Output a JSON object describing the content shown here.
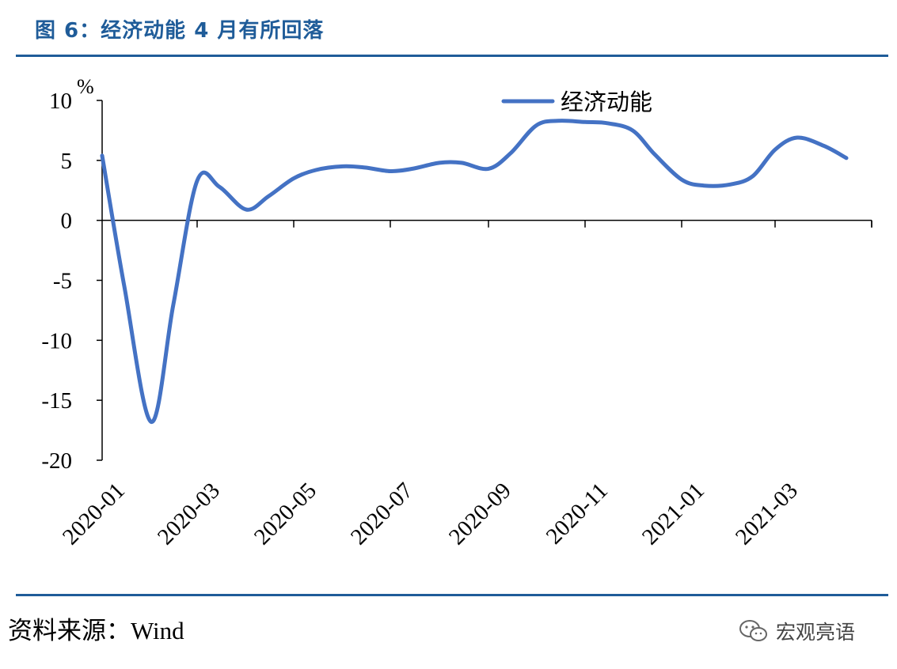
{
  "figure_title": "图 6：经济动能 4 月有所回落",
  "source_text": "资料来源：Wind",
  "watermark_text": "宏观亮语",
  "colors": {
    "accent": "#1f5c99",
    "series": "#4472c4",
    "axis": "#000000"
  },
  "chart_data": {
    "type": "line",
    "unit_label": "%",
    "ylim": [
      -20,
      10
    ],
    "yticks": [
      10,
      5,
      0,
      -5,
      -10,
      -15,
      -20
    ],
    "xtick_labels": [
      "2020-01",
      "2020-03",
      "2020-05",
      "2020-07",
      "2020-09",
      "2020-11",
      "2021-01",
      "2021-03"
    ],
    "legend_position": "top-right",
    "series": [
      {
        "name": "经济动能",
        "x": [
          "2020-01-01",
          "2020-01-15",
          "2020-02-01",
          "2020-02-15",
          "2020-03-01",
          "2020-03-15",
          "2020-04-01",
          "2020-04-15",
          "2020-05-01",
          "2020-05-15",
          "2020-06-01",
          "2020-06-15",
          "2020-07-01",
          "2020-07-15",
          "2020-08-01",
          "2020-08-15",
          "2020-09-01",
          "2020-09-15",
          "2020-10-01",
          "2020-10-15",
          "2020-11-01",
          "2020-11-15",
          "2020-12-01",
          "2020-12-15",
          "2021-01-01",
          "2021-01-15",
          "2021-02-01",
          "2021-02-15",
          "2021-03-01",
          "2021-03-15",
          "2021-04-01",
          "2021-04-15"
        ],
        "values": [
          5.4,
          -5.5,
          -16.8,
          -7.0,
          3.3,
          2.8,
          0.9,
          2.0,
          3.5,
          4.2,
          4.5,
          4.4,
          4.1,
          4.3,
          4.8,
          4.8,
          4.3,
          5.6,
          7.9,
          8.3,
          8.2,
          8.1,
          7.5,
          5.5,
          3.4,
          2.9,
          3.0,
          3.7,
          5.9,
          6.9,
          6.2,
          5.2
        ]
      }
    ]
  }
}
